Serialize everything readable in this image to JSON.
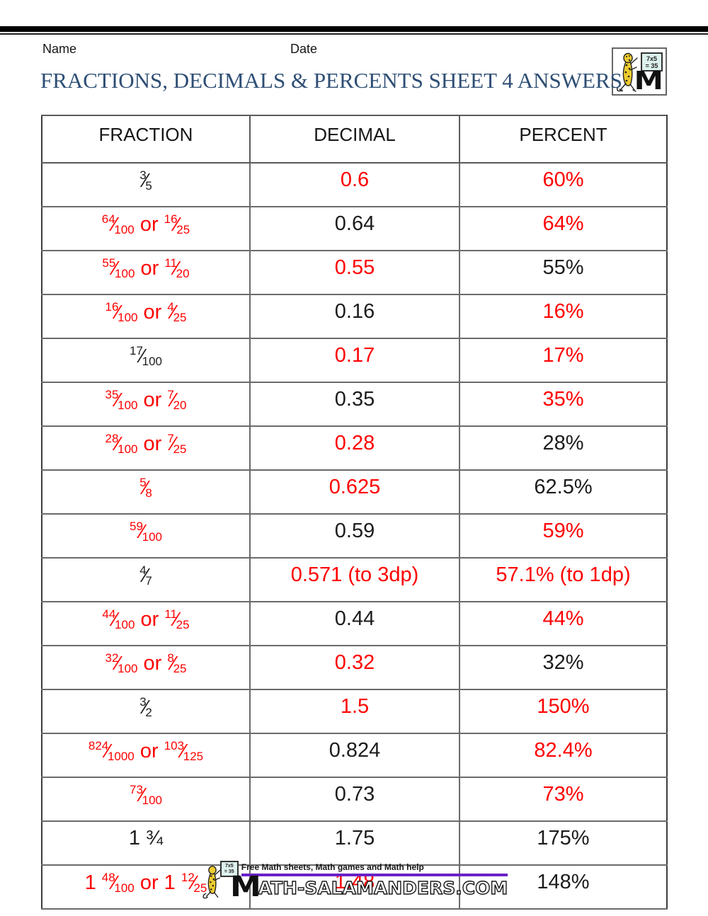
{
  "colors": {
    "answer_red": "#ff0000",
    "title_blue": "#2e4e74",
    "footer_purple": "#6b21c8"
  },
  "header": {
    "name_label": "Name",
    "date_label": "Date",
    "title": "FRACTIONS, DECIMALS & PERCENTS SHEET 4 ANSWERS"
  },
  "logo": {
    "board_line1": "7x5",
    "board_line2": "= 35",
    "monogram": "M"
  },
  "table": {
    "headers": [
      "FRACTION",
      "DECIMAL",
      "PERCENT"
    ],
    "rows": [
      {
        "fraction": {
          "color": "black",
          "parts": [
            {
              "t": "frac",
              "n": "3",
              "d": "5"
            }
          ]
        },
        "decimal": {
          "text": "0.6",
          "color": "red"
        },
        "percent": {
          "text": "60%",
          "color": "red"
        }
      },
      {
        "fraction": {
          "color": "red",
          "parts": [
            {
              "t": "frac",
              "n": "64",
              "d": "100"
            },
            {
              "t": "text",
              "v": " or "
            },
            {
              "t": "frac",
              "n": "16",
              "d": "25"
            }
          ]
        },
        "decimal": {
          "text": "0.64",
          "color": "black"
        },
        "percent": {
          "text": "64%",
          "color": "red"
        }
      },
      {
        "fraction": {
          "color": "red",
          "parts": [
            {
              "t": "frac",
              "n": "55",
              "d": "100"
            },
            {
              "t": "text",
              "v": " or "
            },
            {
              "t": "frac",
              "n": "11",
              "d": "20"
            }
          ]
        },
        "decimal": {
          "text": "0.55",
          "color": "red"
        },
        "percent": {
          "text": "55%",
          "color": "black"
        }
      },
      {
        "fraction": {
          "color": "red",
          "parts": [
            {
              "t": "frac",
              "n": "16",
              "d": "100"
            },
            {
              "t": "text",
              "v": " or "
            },
            {
              "t": "frac",
              "n": "4",
              "d": "25"
            }
          ]
        },
        "decimal": {
          "text": "0.16",
          "color": "black"
        },
        "percent": {
          "text": "16%",
          "color": "red"
        }
      },
      {
        "fraction": {
          "color": "black",
          "parts": [
            {
              "t": "frac",
              "n": "17",
              "d": "100"
            }
          ]
        },
        "decimal": {
          "text": "0.17",
          "color": "red"
        },
        "percent": {
          "text": "17%",
          "color": "red"
        }
      },
      {
        "fraction": {
          "color": "red",
          "parts": [
            {
              "t": "frac",
              "n": "35",
              "d": "100"
            },
            {
              "t": "text",
              "v": " or "
            },
            {
              "t": "frac",
              "n": "7",
              "d": "20"
            }
          ]
        },
        "decimal": {
          "text": "0.35",
          "color": "black"
        },
        "percent": {
          "text": "35%",
          "color": "red"
        }
      },
      {
        "fraction": {
          "color": "red",
          "parts": [
            {
              "t": "frac",
              "n": "28",
              "d": "100"
            },
            {
              "t": "text",
              "v": " or "
            },
            {
              "t": "frac",
              "n": "7",
              "d": "25"
            }
          ]
        },
        "decimal": {
          "text": "0.28",
          "color": "red"
        },
        "percent": {
          "text": "28%",
          "color": "black"
        }
      },
      {
        "fraction": {
          "color": "red",
          "parts": [
            {
              "t": "frac",
              "n": "5",
              "d": "8"
            }
          ]
        },
        "decimal": {
          "text": "0.625",
          "color": "red"
        },
        "percent": {
          "text": "62.5%",
          "color": "black"
        }
      },
      {
        "fraction": {
          "color": "red",
          "parts": [
            {
              "t": "frac",
              "n": "59",
              "d": "100"
            }
          ]
        },
        "decimal": {
          "text": "0.59",
          "color": "black"
        },
        "percent": {
          "text": "59%",
          "color": "red"
        }
      },
      {
        "fraction": {
          "color": "black",
          "parts": [
            {
              "t": "frac",
              "n": "4",
              "d": "7"
            }
          ]
        },
        "decimal": {
          "text": "0.571 (to 3dp)",
          "color": "red"
        },
        "percent": {
          "text": "57.1% (to 1dp)",
          "color": "red"
        }
      },
      {
        "fraction": {
          "color": "red",
          "parts": [
            {
              "t": "frac",
              "n": "44",
              "d": "100"
            },
            {
              "t": "text",
              "v": " or "
            },
            {
              "t": "frac",
              "n": "11",
              "d": "25"
            }
          ]
        },
        "decimal": {
          "text": "0.44",
          "color": "black"
        },
        "percent": {
          "text": "44%",
          "color": "red"
        }
      },
      {
        "fraction": {
          "color": "red",
          "parts": [
            {
              "t": "frac",
              "n": "32",
              "d": "100"
            },
            {
              "t": "text",
              "v": " or "
            },
            {
              "t": "frac",
              "n": "8",
              "d": "25"
            }
          ]
        },
        "decimal": {
          "text": "0.32",
          "color": "red"
        },
        "percent": {
          "text": "32%",
          "color": "black"
        }
      },
      {
        "fraction": {
          "color": "black",
          "parts": [
            {
              "t": "frac",
              "n": "3",
              "d": "2"
            }
          ]
        },
        "decimal": {
          "text": "1.5",
          "color": "red"
        },
        "percent": {
          "text": "150%",
          "color": "red"
        }
      },
      {
        "fraction": {
          "color": "red",
          "parts": [
            {
              "t": "frac",
              "n": "824",
              "d": "1000"
            },
            {
              "t": "text",
              "v": " or "
            },
            {
              "t": "frac",
              "n": "103",
              "d": "125"
            }
          ]
        },
        "decimal": {
          "text": "0.824",
          "color": "black"
        },
        "percent": {
          "text": "82.4%",
          "color": "red"
        }
      },
      {
        "fraction": {
          "color": "red",
          "parts": [
            {
              "t": "frac",
              "n": "73",
              "d": "100"
            }
          ]
        },
        "decimal": {
          "text": "0.73",
          "color": "black"
        },
        "percent": {
          "text": "73%",
          "color": "red"
        }
      },
      {
        "fraction": {
          "color": "black",
          "parts": [
            {
              "t": "text",
              "v": "1 ¾"
            }
          ]
        },
        "decimal": {
          "text": "1.75",
          "color": "black"
        },
        "percent": {
          "text": "175%",
          "color": "black"
        }
      },
      {
        "fraction": {
          "color": "red",
          "parts": [
            {
              "t": "text",
              "v": "1 "
            },
            {
              "t": "frac",
              "n": "48",
              "d": "100"
            },
            {
              "t": "text",
              "v": " or 1 "
            },
            {
              "t": "frac",
              "n": "12",
              "d": "25"
            }
          ]
        },
        "decimal": {
          "text": "1.48",
          "color": "red"
        },
        "percent": {
          "text": "148%",
          "color": "black"
        }
      }
    ]
  },
  "footer": {
    "tagline": "Free Math sheets, Math games and Math help",
    "brand_monogram": "M",
    "brand_text": "ATH-SALAMANDERS.COM",
    "board_line1": "7x5",
    "board_line2": "= 35"
  }
}
